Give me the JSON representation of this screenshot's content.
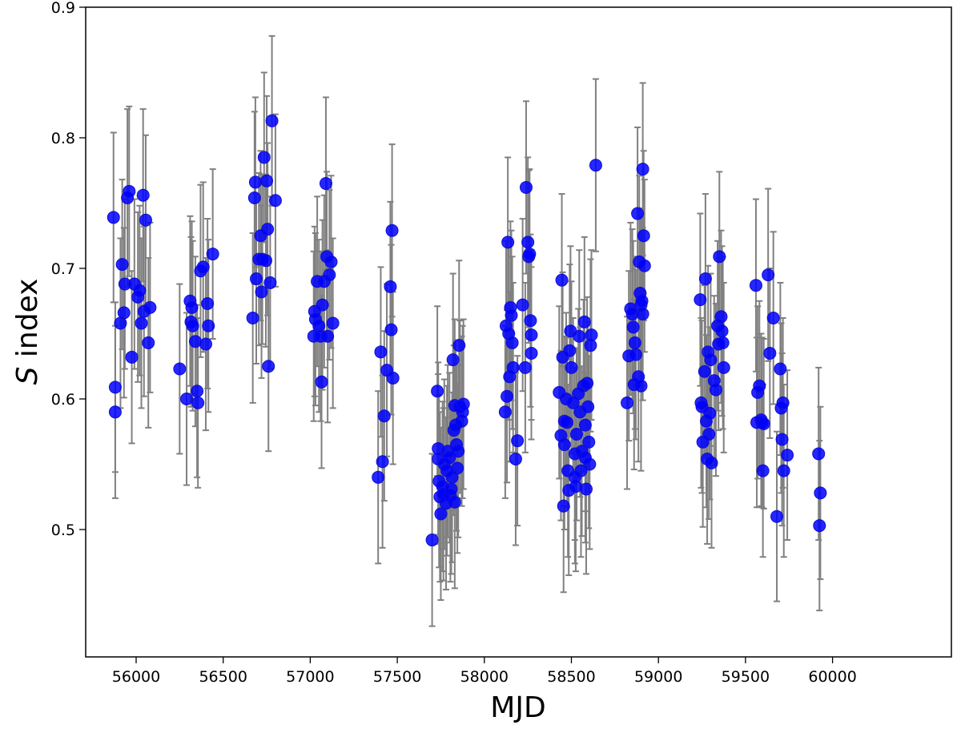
{
  "chart_data": {
    "type": "scatter",
    "title": "",
    "xlabel": "MJD",
    "ylabel_italic": "S",
    "ylabel_rest": " index",
    "xlim": [
      55710,
      60685
    ],
    "ylim": [
      0.402,
      0.9
    ],
    "xticks": [
      "56000",
      "56500",
      "57000",
      "57500",
      "58000",
      "58500",
      "59000",
      "59500",
      "60000"
    ],
    "yticks": [
      "0.5",
      "0.6",
      "0.7",
      "0.8",
      "0.9"
    ],
    "grid": false,
    "marker_color": "#0000ff",
    "errorbar_color": "#808080",
    "points": [
      [
        55870,
        0.739,
        0.065
      ],
      [
        55880,
        0.609,
        0.065
      ],
      [
        55880,
        0.59,
        0.066
      ],
      [
        55910,
        0.658,
        0.065
      ],
      [
        55920,
        0.703,
        0.065
      ],
      [
        55930,
        0.666,
        0.065
      ],
      [
        55935,
        0.688,
        0.065
      ],
      [
        55950,
        0.754,
        0.068
      ],
      [
        55960,
        0.759,
        0.065
      ],
      [
        55975,
        0.632,
        0.066
      ],
      [
        55990,
        0.688,
        0.065
      ],
      [
        56010,
        0.678,
        0.065
      ],
      [
        56020,
        0.683,
        0.065
      ],
      [
        56030,
        0.658,
        0.065
      ],
      [
        56040,
        0.756,
        0.066
      ],
      [
        56045,
        0.667,
        0.065
      ],
      [
        56055,
        0.737,
        0.065
      ],
      [
        56070,
        0.643,
        0.065
      ],
      [
        56080,
        0.67,
        0.065
      ],
      [
        56250,
        0.623,
        0.065
      ],
      [
        56290,
        0.6,
        0.066
      ],
      [
        56310,
        0.675,
        0.065
      ],
      [
        56315,
        0.659,
        0.065
      ],
      [
        56320,
        0.67,
        0.066
      ],
      [
        56325,
        0.656,
        0.065
      ],
      [
        56340,
        0.644,
        0.065
      ],
      [
        56350,
        0.606,
        0.066
      ],
      [
        56355,
        0.597,
        0.065
      ],
      [
        56370,
        0.698,
        0.066
      ],
      [
        56385,
        0.701,
        0.065
      ],
      [
        56400,
        0.642,
        0.066
      ],
      [
        56410,
        0.673,
        0.065
      ],
      [
        56415,
        0.656,
        0.066
      ],
      [
        56440,
        0.711,
        0.065
      ],
      [
        56670,
        0.662,
        0.065
      ],
      [
        56680,
        0.754,
        0.066
      ],
      [
        56685,
        0.766,
        0.065
      ],
      [
        56690,
        0.692,
        0.065
      ],
      [
        56705,
        0.707,
        0.066
      ],
      [
        56715,
        0.725,
        0.065
      ],
      [
        56720,
        0.682,
        0.066
      ],
      [
        56725,
        0.707,
        0.065
      ],
      [
        56735,
        0.785,
        0.065
      ],
      [
        56745,
        0.706,
        0.066
      ],
      [
        56750,
        0.767,
        0.065
      ],
      [
        56755,
        0.73,
        0.066
      ],
      [
        56760,
        0.625,
        0.065
      ],
      [
        56770,
        0.689,
        0.066
      ],
      [
        56780,
        0.813,
        0.065
      ],
      [
        56800,
        0.752,
        0.066
      ],
      [
        57020,
        0.648,
        0.065
      ],
      [
        57025,
        0.667,
        0.065
      ],
      [
        57030,
        0.661,
        0.066
      ],
      [
        57040,
        0.69,
        0.065
      ],
      [
        57050,
        0.656,
        0.066
      ],
      [
        57060,
        0.648,
        0.065
      ],
      [
        57065,
        0.613,
        0.066
      ],
      [
        57070,
        0.672,
        0.065
      ],
      [
        57080,
        0.69,
        0.066
      ],
      [
        57090,
        0.765,
        0.066
      ],
      [
        57095,
        0.709,
        0.065
      ],
      [
        57100,
        0.648,
        0.066
      ],
      [
        57110,
        0.695,
        0.065
      ],
      [
        57120,
        0.705,
        0.066
      ],
      [
        57130,
        0.658,
        0.065
      ],
      [
        57390,
        0.54,
        0.066
      ],
      [
        57405,
        0.636,
        0.065
      ],
      [
        57415,
        0.552,
        0.066
      ],
      [
        57425,
        0.587,
        0.065
      ],
      [
        57440,
        0.622,
        0.066
      ],
      [
        57460,
        0.686,
        0.065
      ],
      [
        57470,
        0.729,
        0.066
      ],
      [
        57465,
        0.653,
        0.065
      ],
      [
        57475,
        0.616,
        0.066
      ],
      [
        57700,
        0.492,
        0.066
      ],
      [
        57730,
        0.606,
        0.065
      ],
      [
        57735,
        0.562,
        0.066
      ],
      [
        57735,
        0.554,
        0.065
      ],
      [
        57740,
        0.537,
        0.066
      ],
      [
        57745,
        0.525,
        0.065
      ],
      [
        57750,
        0.512,
        0.066
      ],
      [
        57760,
        0.533,
        0.065
      ],
      [
        57765,
        0.527,
        0.066
      ],
      [
        57770,
        0.55,
        0.065
      ],
      [
        57780,
        0.52,
        0.066
      ],
      [
        57785,
        0.545,
        0.065
      ],
      [
        57790,
        0.56,
        0.066
      ],
      [
        57800,
        0.555,
        0.065
      ],
      [
        57805,
        0.526,
        0.066
      ],
      [
        57810,
        0.531,
        0.065
      ],
      [
        57820,
        0.63,
        0.066
      ],
      [
        57825,
        0.576,
        0.065
      ],
      [
        57830,
        0.595,
        0.066
      ],
      [
        57835,
        0.58,
        0.065
      ],
      [
        57840,
        0.565,
        0.066
      ],
      [
        57845,
        0.547,
        0.065
      ],
      [
        57850,
        0.56,
        0.066
      ],
      [
        57855,
        0.641,
        0.065
      ],
      [
        57860,
        0.594,
        0.066
      ],
      [
        57870,
        0.583,
        0.065
      ],
      [
        57875,
        0.59,
        0.066
      ],
      [
        57880,
        0.596,
        0.065
      ],
      [
        57830,
        0.521,
        0.066
      ],
      [
        57815,
        0.54,
        0.065
      ],
      [
        58120,
        0.59,
        0.066
      ],
      [
        58125,
        0.656,
        0.065
      ],
      [
        58130,
        0.602,
        0.066
      ],
      [
        58135,
        0.72,
        0.065
      ],
      [
        58140,
        0.65,
        0.066
      ],
      [
        58145,
        0.617,
        0.065
      ],
      [
        58150,
        0.67,
        0.066
      ],
      [
        58155,
        0.664,
        0.065
      ],
      [
        58160,
        0.643,
        0.066
      ],
      [
        58165,
        0.624,
        0.065
      ],
      [
        58180,
        0.554,
        0.066
      ],
      [
        58190,
        0.568,
        0.065
      ],
      [
        58220,
        0.672,
        0.066
      ],
      [
        58235,
        0.624,
        0.065
      ],
      [
        58240,
        0.762,
        0.066
      ],
      [
        58250,
        0.72,
        0.065
      ],
      [
        58255,
        0.709,
        0.066
      ],
      [
        58260,
        0.711,
        0.065
      ],
      [
        58265,
        0.66,
        0.066
      ],
      [
        58270,
        0.649,
        0.065
      ],
      [
        58270,
        0.635,
        0.066
      ],
      [
        58430,
        0.605,
        0.066
      ],
      [
        58440,
        0.572,
        0.065
      ],
      [
        58445,
        0.691,
        0.066
      ],
      [
        58450,
        0.632,
        0.065
      ],
      [
        58455,
        0.518,
        0.066
      ],
      [
        58460,
        0.565,
        0.065
      ],
      [
        58470,
        0.6,
        0.066
      ],
      [
        58475,
        0.582,
        0.065
      ],
      [
        58480,
        0.545,
        0.066
      ],
      [
        58485,
        0.53,
        0.065
      ],
      [
        58490,
        0.637,
        0.066
      ],
      [
        58495,
        0.652,
        0.065
      ],
      [
        58500,
        0.624,
        0.066
      ],
      [
        58510,
        0.597,
        0.065
      ],
      [
        58520,
        0.558,
        0.066
      ],
      [
        58525,
        0.533,
        0.065
      ],
      [
        58530,
        0.573,
        0.066
      ],
      [
        58540,
        0.604,
        0.065
      ],
      [
        58545,
        0.648,
        0.066
      ],
      [
        58550,
        0.59,
        0.065
      ],
      [
        58555,
        0.545,
        0.066
      ],
      [
        58560,
        0.56,
        0.065
      ],
      [
        58570,
        0.61,
        0.066
      ],
      [
        58575,
        0.659,
        0.065
      ],
      [
        58580,
        0.58,
        0.066
      ],
      [
        58585,
        0.531,
        0.065
      ],
      [
        58590,
        0.612,
        0.066
      ],
      [
        58595,
        0.594,
        0.065
      ],
      [
        58600,
        0.567,
        0.066
      ],
      [
        58605,
        0.55,
        0.065
      ],
      [
        58610,
        0.641,
        0.066
      ],
      [
        58615,
        0.649,
        0.065
      ],
      [
        58640,
        0.779,
        0.066
      ],
      [
        58460,
        0.583,
        0.065
      ],
      [
        58520,
        0.54,
        0.066
      ],
      [
        58580,
        0.555,
        0.065
      ],
      [
        58820,
        0.597,
        0.066
      ],
      [
        58830,
        0.633,
        0.065
      ],
      [
        58840,
        0.669,
        0.066
      ],
      [
        58850,
        0.665,
        0.065
      ],
      [
        58855,
        0.655,
        0.066
      ],
      [
        58860,
        0.611,
        0.065
      ],
      [
        58865,
        0.643,
        0.066
      ],
      [
        58870,
        0.634,
        0.065
      ],
      [
        58880,
        0.742,
        0.066
      ],
      [
        58885,
        0.617,
        0.065
      ],
      [
        58890,
        0.705,
        0.066
      ],
      [
        58895,
        0.681,
        0.065
      ],
      [
        58900,
        0.672,
        0.066
      ],
      [
        58905,
        0.675,
        0.065
      ],
      [
        58910,
        0.776,
        0.066
      ],
      [
        58915,
        0.725,
        0.065
      ],
      [
        58920,
        0.702,
        0.066
      ],
      [
        58900,
        0.61,
        0.065
      ],
      [
        58910,
        0.665,
        0.066
      ],
      [
        59240,
        0.676,
        0.066
      ],
      [
        59245,
        0.597,
        0.065
      ],
      [
        59250,
        0.594,
        0.066
      ],
      [
        59255,
        0.567,
        0.065
      ],
      [
        59265,
        0.621,
        0.066
      ],
      [
        59270,
        0.692,
        0.065
      ],
      [
        59275,
        0.583,
        0.066
      ],
      [
        59280,
        0.554,
        0.065
      ],
      [
        59285,
        0.636,
        0.066
      ],
      [
        59290,
        0.573,
        0.065
      ],
      [
        59295,
        0.589,
        0.066
      ],
      [
        59305,
        0.551,
        0.065
      ],
      [
        59300,
        0.63,
        0.066
      ],
      [
        59320,
        0.614,
        0.065
      ],
      [
        59330,
        0.607,
        0.066
      ],
      [
        59340,
        0.656,
        0.065
      ],
      [
        59345,
        0.642,
        0.066
      ],
      [
        59350,
        0.709,
        0.065
      ],
      [
        59360,
        0.663,
        0.066
      ],
      [
        59365,
        0.652,
        0.065
      ],
      [
        59370,
        0.643,
        0.066
      ],
      [
        59375,
        0.624,
        0.065
      ],
      [
        59560,
        0.687,
        0.066
      ],
      [
        59565,
        0.582,
        0.065
      ],
      [
        59570,
        0.605,
        0.066
      ],
      [
        59580,
        0.61,
        0.065
      ],
      [
        59590,
        0.584,
        0.066
      ],
      [
        59595,
        0.582,
        0.065
      ],
      [
        59600,
        0.545,
        0.066
      ],
      [
        59605,
        0.581,
        0.065
      ],
      [
        59630,
        0.695,
        0.066
      ],
      [
        59640,
        0.635,
        0.065
      ],
      [
        59660,
        0.662,
        0.066
      ],
      [
        59680,
        0.51,
        0.065
      ],
      [
        59700,
        0.623,
        0.066
      ],
      [
        59705,
        0.593,
        0.065
      ],
      [
        59710,
        0.569,
        0.066
      ],
      [
        59715,
        0.597,
        0.065
      ],
      [
        59720,
        0.545,
        0.066
      ],
      [
        59740,
        0.557,
        0.065
      ],
      [
        59920,
        0.558,
        0.066
      ],
      [
        59925,
        0.503,
        0.065
      ],
      [
        59930,
        0.528,
        0.066
      ]
    ]
  }
}
